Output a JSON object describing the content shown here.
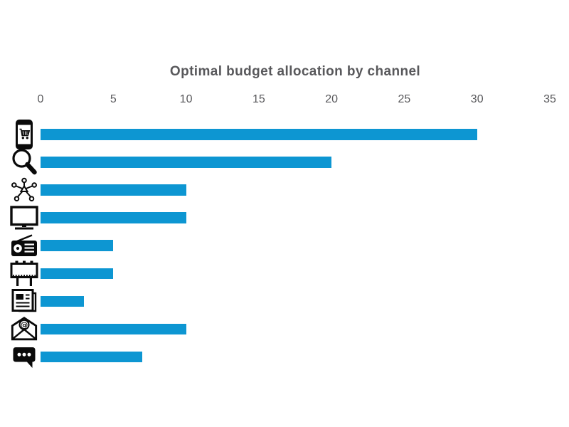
{
  "page": {
    "background": "#ffffff"
  },
  "chart_data": {
    "type": "bar",
    "orientation": "horizontal",
    "title": "Optimal budget allocation by channel",
    "categories": [
      "mobile-shopping-icon",
      "search-icon",
      "affiliate-network-icon",
      "tv-icon",
      "radio-icon",
      "billboard-icon",
      "newspaper-icon",
      "email-icon",
      "chat-bubble-icon"
    ],
    "category_descriptions": [
      "smartphone with shopping cart",
      "magnifying glass",
      "hub and spoke network",
      "television screen",
      "radio with antenna",
      "billboard on posts",
      "newspaper",
      "open envelope with at-sign",
      "speech bubble with dots"
    ],
    "values": [
      30,
      20,
      10,
      10,
      5,
      5,
      3,
      10,
      7
    ],
    "xlabel": "",
    "ylabel": "",
    "xlim": [
      0,
      35
    ],
    "xticks": [
      0,
      5,
      10,
      15,
      20,
      25,
      30,
      35
    ],
    "grid": false,
    "legend": null,
    "bar_color": "#0d96d2",
    "title_color": "#58585b",
    "tick_color": "#58585b",
    "icon_color": "#0a0a0a"
  }
}
